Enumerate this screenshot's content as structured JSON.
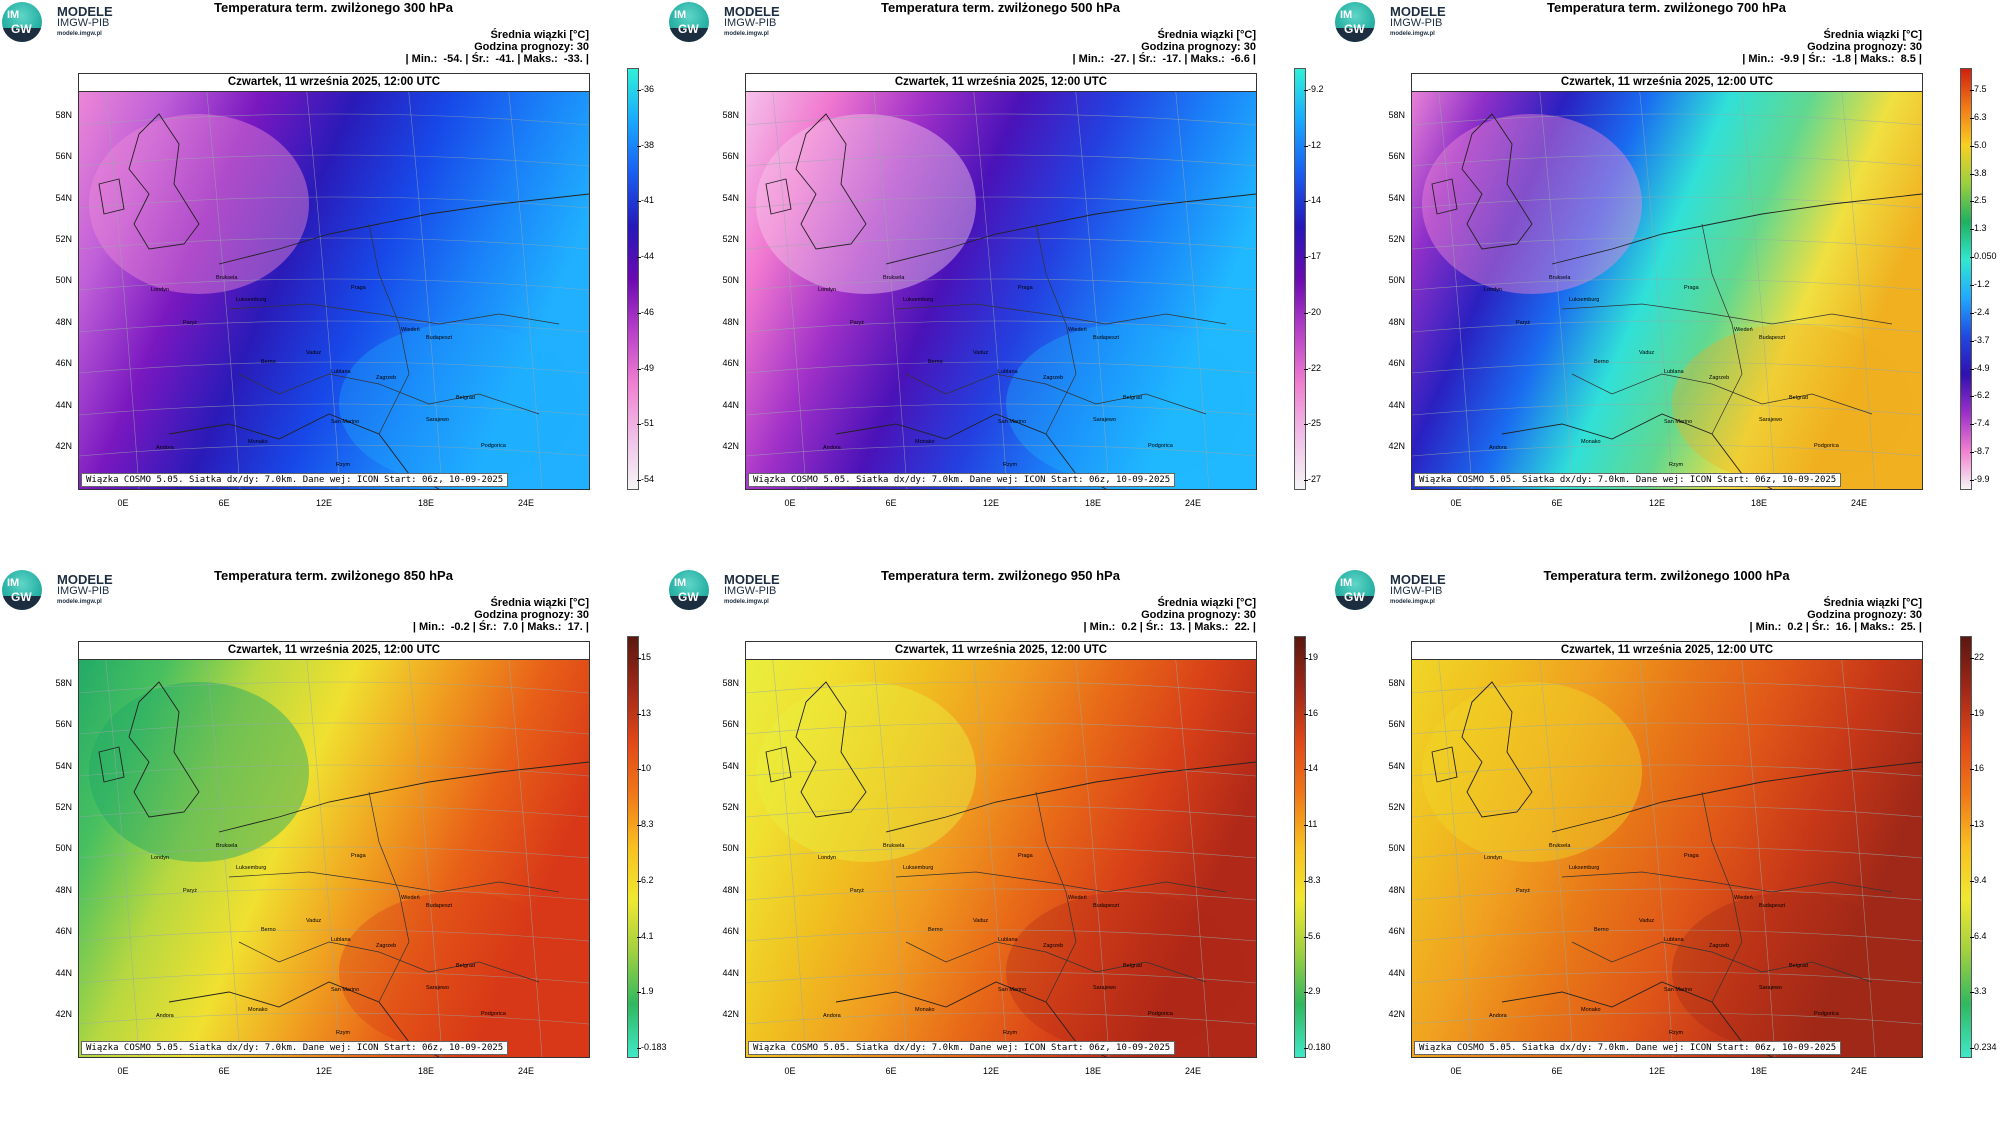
{
  "logo": {
    "line1": "MODELE",
    "line2": "IMGW-PIB",
    "line3": "modele.imgw.pl",
    "mark_im": "IM",
    "mark_gw": "GW"
  },
  "common": {
    "stats_header": "Średnia wiązki [°C]",
    "forecast_hour": "Godzina prognozy: 30",
    "date_label": "Czwartek, 11 września 2025, 12:00 UTC",
    "footer": "Wiązka COSMO 5.05. Siatka dx/dy: 7.0km. Dane wej: ICON Start: 06z, 10-09-2025",
    "lat_labels": [
      "58N",
      "56N",
      "54N",
      "52N",
      "50N",
      "48N",
      "46N",
      "44N",
      "42N"
    ],
    "lon_labels": [
      "0E",
      "6E",
      "12E",
      "18E",
      "24E"
    ],
    "cities": [
      "Londyn",
      "Bruksela",
      "Paryż",
      "Luksemburg",
      "Praga",
      "Wiedeń",
      "Budapeszt",
      "Berno",
      "Vaduz",
      "Zagrzeb",
      "Lublana",
      "Belgrad",
      "Sarajewo",
      "San Marino",
      "Monako",
      "Andora",
      "Podgorica",
      "Rzym"
    ]
  },
  "colors": {
    "border": "#333333",
    "sea_ocean": "#3a6fd0"
  },
  "panels": [
    {
      "title": "Temperatura term. zwilżonego 300 hPa",
      "stats": "| Min.:  -54. | Śr.:  -41. | Maks.:  -33. |",
      "cbar_ticks": [
        "-36",
        "-38",
        "-41",
        "-44",
        "-46",
        "-49",
        "-51",
        "-54"
      ],
      "cbar_colors": [
        "#2ff0d8",
        "#18a8ff",
        "#1a5cf0",
        "#2618b8",
        "#6a0ab0",
        "#b840c8",
        "#f080d0",
        "#f0c0e8",
        "#f5f5f5"
      ],
      "map_colors": [
        "#f08ad8",
        "#c060d8",
        "#7a18c0",
        "#2a1ab8",
        "#1848e8",
        "#1a80f8",
        "#20b0ff"
      ]
    },
    {
      "title": "Temperatura term. zwilżonego 500 hPa",
      "stats": "| Min.:  -27. | Śr.:  -17. | Maks.:  -6.6 |",
      "cbar_ticks": [
        "-9.2",
        "-12",
        "-14",
        "-17",
        "-20",
        "-22",
        "-25",
        "-27"
      ],
      "cbar_colors": [
        "#2ff0d8",
        "#18a8ff",
        "#1a5cf0",
        "#2618b8",
        "#6a0ab0",
        "#b840c8",
        "#f080d0",
        "#f0c0e8",
        "#f5f5f5"
      ],
      "map_colors": [
        "#f6c8ec",
        "#f078d0",
        "#a030c8",
        "#4a12b8",
        "#2440e0",
        "#1a80f8",
        "#20b8ff"
      ]
    },
    {
      "title": "Temperatura term. zwilżonego 700 hPa",
      "stats": "| Min.:  -9.9 | Śr.:  -1.8 | Maks.:  8.5 |",
      "cbar_ticks": [
        "7.5",
        "6.3",
        "5.0",
        "3.8",
        "2.5",
        "1.3",
        "0.050",
        "-1.2",
        "-2.4",
        "-3.7",
        "-4.9",
        "-6.2",
        "-7.4",
        "-8.7",
        "-9.9"
      ],
      "cbar_colors": [
        "#d02010",
        "#f07a18",
        "#f8d020",
        "#9ad040",
        "#20b060",
        "#30e8d0",
        "#20a8ff",
        "#2048e0",
        "#3010b0",
        "#9a30c8",
        "#f080d0",
        "#f5f5f5"
      ],
      "map_colors": [
        "#f08ad8",
        "#9030c8",
        "#2a20c0",
        "#1a6cf0",
        "#30e0d8",
        "#60d890",
        "#f0e040",
        "#f0b020"
      ]
    },
    {
      "title": "Temperatura term. zwilżonego 850 hPa",
      "stats": "| Min.:  -0.2 | Śr.:  7.0 | Maks.:  17. |",
      "cbar_ticks": [
        "15",
        "13",
        "10",
        "8.3",
        "6.2",
        "4.1",
        "1.9",
        "-0.183"
      ],
      "cbar_colors": [
        "#5a1810",
        "#a02818",
        "#e04818",
        "#f07818",
        "#f8c020",
        "#f0e830",
        "#a0d040",
        "#30b860",
        "#40e8c8"
      ],
      "map_colors": [
        "#20a868",
        "#48c060",
        "#b8d840",
        "#f0e030",
        "#f0a020",
        "#e86018",
        "#d83818"
      ]
    },
    {
      "title": "Temperatura term. zwilżonego 950 hPa",
      "stats": "| Min.:  0.2 | Śr.:  13. | Maks.:  22. |",
      "cbar_ticks": [
        "19",
        "16",
        "14",
        "11",
        "8.3",
        "5.6",
        "2.9",
        "0.180"
      ],
      "cbar_colors": [
        "#5a1810",
        "#a02818",
        "#e04818",
        "#f07818",
        "#f8c020",
        "#f0e830",
        "#a0d040",
        "#30b860",
        "#40e8c8"
      ],
      "map_colors": [
        "#e8f040",
        "#f0e030",
        "#f0c020",
        "#f09a20",
        "#e86a18",
        "#d84018",
        "#b02818"
      ]
    },
    {
      "title": "Temperatura term. zwilżonego 1000 hPa",
      "stats": "| Min.:  0.2 | Śr.:  16. | Maks.:  25. |",
      "cbar_ticks": [
        "22",
        "19",
        "16",
        "13",
        "9.4",
        "6.4",
        "3.3",
        "0.234"
      ],
      "cbar_colors": [
        "#5a1810",
        "#a02818",
        "#e04818",
        "#f07818",
        "#f8c020",
        "#f0e830",
        "#a0d040",
        "#30b860",
        "#40e8c8"
      ],
      "map_colors": [
        "#f0d828",
        "#f0c020",
        "#f0a020",
        "#e87818",
        "#e05818",
        "#c83818",
        "#a02818"
      ]
    }
  ]
}
